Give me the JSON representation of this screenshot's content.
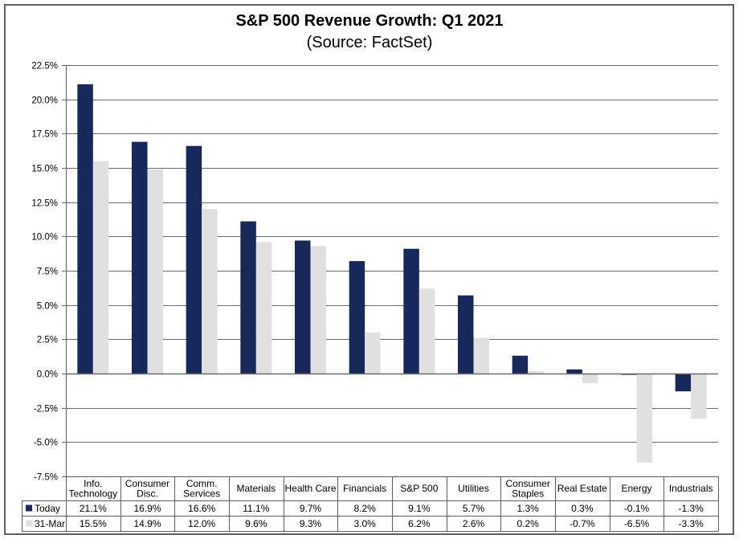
{
  "chart_data": {
    "type": "bar",
    "title": "S&P 500 Revenue Growth: Q1 2021",
    "subtitle": "(Source: FactSet)",
    "xlabel": "",
    "ylabel": "",
    "ylim": [
      -7.5,
      22.5
    ],
    "yticks": [
      22.5,
      20.0,
      17.5,
      15.0,
      12.5,
      10.0,
      7.5,
      5.0,
      2.5,
      0.0,
      -2.5,
      -5.0,
      -7.5
    ],
    "ytick_labels": [
      "22.5%",
      "20.0%",
      "17.5%",
      "15.0%",
      "12.5%",
      "10.0%",
      "7.5%",
      "5.0%",
      "2.5%",
      "0.0%",
      "-2.5%",
      "-5.0%",
      "-7.5%"
    ],
    "grid": true,
    "legend": "data-table-below",
    "categories": [
      [
        "Info.",
        "Technology"
      ],
      [
        "Consumer",
        "Disc."
      ],
      [
        "Comm.",
        "Services"
      ],
      [
        "Materials"
      ],
      [
        "Health Care"
      ],
      [
        "Financials"
      ],
      [
        "S&P 500"
      ],
      [
        "Utilities"
      ],
      [
        "Consumer",
        "Staples"
      ],
      [
        "Real Estate"
      ],
      [
        "Energy"
      ],
      [
        "Industrials"
      ]
    ],
    "series": [
      {
        "name": "Today",
        "color": "#17285A",
        "values": [
          21.1,
          16.9,
          16.6,
          11.1,
          9.7,
          8.2,
          9.1,
          5.7,
          1.3,
          0.3,
          -0.1,
          -1.3
        ],
        "labels": [
          "21.1%",
          "16.9%",
          "16.6%",
          "11.1%",
          "9.7%",
          "8.2%",
          "9.1%",
          "5.7%",
          "1.3%",
          "0.3%",
          "-0.1%",
          "-1.3%"
        ]
      },
      {
        "name": "31-Mar",
        "color": "#E0E0E0",
        "values": [
          15.5,
          14.9,
          12.0,
          9.6,
          9.3,
          3.0,
          6.2,
          2.6,
          0.2,
          -0.7,
          -6.5,
          -3.3
        ],
        "labels": [
          "15.5%",
          "14.9%",
          "12.0%",
          "9.6%",
          "9.3%",
          "3.0%",
          "6.2%",
          "2.6%",
          "0.2%",
          "-0.7%",
          "-6.5%",
          "-3.3%"
        ]
      }
    ]
  }
}
